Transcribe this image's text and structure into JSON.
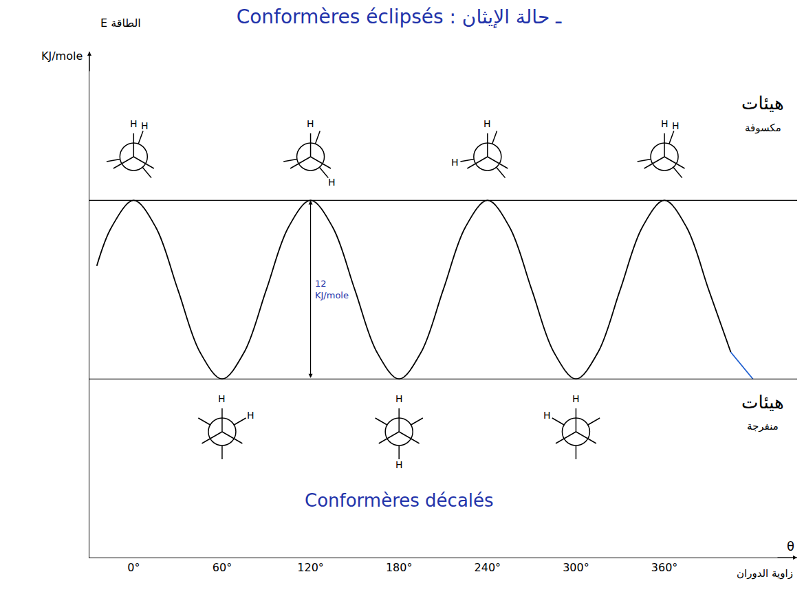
{
  "chart_data": {
    "type": "line",
    "title": "ـ حالة الإيثان : Conformères éclipsés",
    "y_label": "E الطاقة",
    "y_unit": "KJ/mole",
    "x_label": "زاوية الدوران",
    "x_symbol": "θ",
    "x": [
      -25,
      -15,
      0,
      15,
      30,
      45,
      60,
      75,
      90,
      105,
      120,
      135,
      150,
      165,
      180,
      195,
      210,
      225,
      240,
      255,
      270,
      285,
      300,
      315,
      330,
      345,
      360,
      375,
      390,
      405,
      420
    ],
    "values": [
      7.6,
      10.2,
      12,
      10.2,
      6,
      1.8,
      0,
      1.8,
      6,
      10.2,
      12,
      10.2,
      6,
      1.8,
      0,
      1.8,
      6,
      10.2,
      12,
      10.2,
      6,
      1.8,
      0,
      1.8,
      6,
      10.2,
      12,
      10.2,
      6,
      1.8,
      0
    ],
    "colors": [
      "#000000",
      "#000000",
      "#000000",
      "#000000",
      "#000000",
      "#000000",
      "#000000",
      "#000000",
      "#000000",
      "#000000",
      "#000000",
      "#000000",
      "#000000",
      "#000000",
      "#000000",
      "#000000",
      "#000000",
      "#000000",
      "#000000",
      "#000000",
      "#000000",
      "#000000",
      "#000000",
      "#000000",
      "#000000",
      "#000000",
      "#000000",
      "#000000",
      "#000000",
      "#000000",
      "#1f5fd0"
    ],
    "xlim": [
      -30,
      450
    ],
    "xticks": [
      {
        "value": 0,
        "label": "0°"
      },
      {
        "value": 60,
        "label": "60°"
      },
      {
        "value": 120,
        "label": "120°"
      },
      {
        "value": 180,
        "label": "180°"
      },
      {
        "value": 240,
        "label": "240°"
      },
      {
        "value": 300,
        "label": "300°"
      },
      {
        "value": 360,
        "label": "360°"
      }
    ],
    "ylim": [
      -12,
      22
    ],
    "yticks": [],
    "tick_labels": "x",
    "grid": false,
    "energy_barrier": {
      "value": 12,
      "label": "12 KJ/mole"
    },
    "conformers": {
      "eclipsed": {
        "label": "هيئات مكسوفة",
        "angles": [
          0,
          120,
          240,
          360
        ],
        "atom": "H"
      },
      "staggered": {
        "label": "هيئات منفرجة",
        "caption": "Conformères décalés",
        "angles": [
          60,
          180,
          300
        ],
        "atom": "H"
      }
    }
  }
}
